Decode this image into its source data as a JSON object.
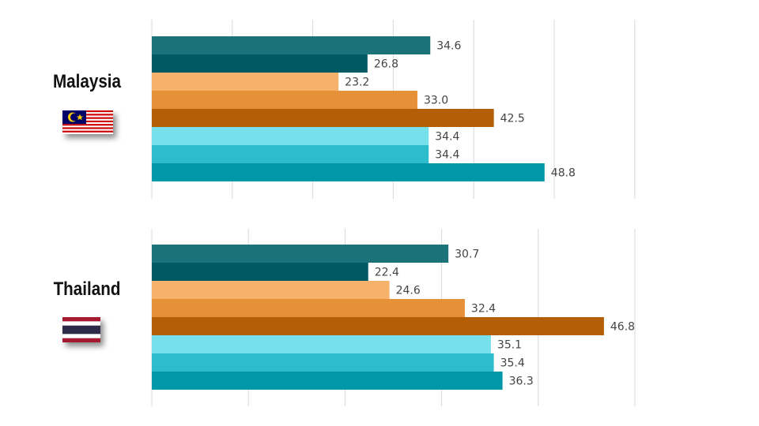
{
  "chart_data": [
    {
      "type": "bar",
      "orientation": "horizontal",
      "title": "Malaysia",
      "flag_icon": "malaysia-flag-icon",
      "xlim": [
        0,
        60
      ],
      "grid": true,
      "values": [
        34.6,
        26.8,
        23.2,
        33.0,
        42.5,
        34.4,
        34.4,
        48.8
      ],
      "labels": [
        "34.6",
        "26.8",
        "23.2",
        "33.0",
        "42.5",
        "34.4",
        "34.4",
        "48.8"
      ]
    },
    {
      "type": "bar",
      "orientation": "horizontal",
      "title": "Thailand",
      "flag_icon": "thailand-flag-icon",
      "xlim": [
        0,
        50
      ],
      "grid": true,
      "values": [
        30.7,
        22.4,
        24.6,
        32.4,
        46.8,
        35.1,
        35.4,
        36.3
      ],
      "labels": [
        "30.7",
        "22.4",
        "24.6",
        "32.4",
        "46.8",
        "35.1",
        "35.4",
        "36.3"
      ]
    }
  ],
  "bar_colors": [
    "#1b7279",
    "#005a64",
    "#f6b26b",
    "#e69138",
    "#b45f06",
    "#76e0ec",
    "#2cbccc",
    "#0098a8"
  ],
  "grid_color": "#d9d9d9"
}
